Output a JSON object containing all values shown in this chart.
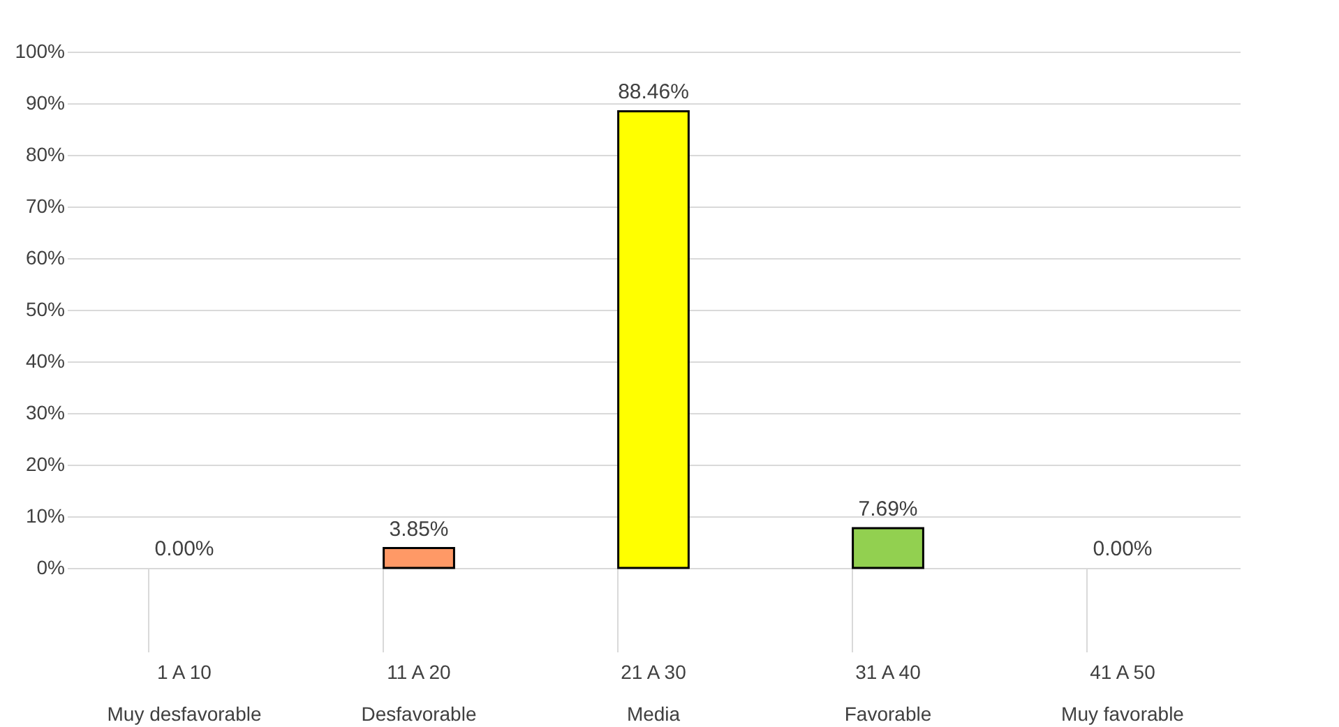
{
  "chart_data": {
    "type": "bar",
    "categories": [
      "1 A 10\nMuy desfavorable",
      "11 A 20\nDesfavorable",
      "21 A 30\nMedia",
      "31 A 40\nFavorable",
      "41 A 50\nMuy favorable"
    ],
    "values": [
      0,
      3.85,
      88.46,
      7.69,
      0
    ],
    "colors": [
      "#ffffff",
      "#ff9966",
      "#ffff00",
      "#92d050",
      "#ffffff"
    ],
    "value_labels": [
      "0.00%",
      "3.85%",
      "88.46%",
      "7.69%",
      "0.00%"
    ],
    "ylim": [
      0,
      100
    ],
    "yticks": [
      {
        "value": 0,
        "label": "0%"
      },
      {
        "value": 10,
        "label": "10%"
      },
      {
        "value": 20,
        "label": "20%"
      },
      {
        "value": 30,
        "label": "30%"
      },
      {
        "value": 40,
        "label": "40%"
      },
      {
        "value": 50,
        "label": "50%"
      },
      {
        "value": 60,
        "label": "60%"
      },
      {
        "value": 70,
        "label": "70%"
      },
      {
        "value": 80,
        "label": "80%"
      },
      {
        "value": 90,
        "label": "90%"
      },
      {
        "value": 100,
        "label": "100%"
      }
    ],
    "grid": "y"
  }
}
